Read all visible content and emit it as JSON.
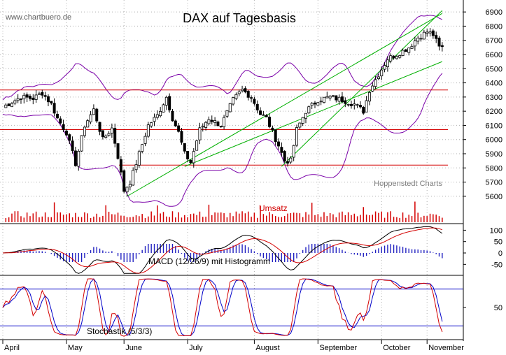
{
  "watermark": "www.chartbuero.de",
  "chart_data": [
    {
      "type": "candlestick",
      "title": "DAX auf Tagesbasis",
      "annotations": [
        "Hoppenstedt Charts"
      ],
      "y_ticks": [
        5600,
        5700,
        5800,
        5900,
        6000,
        6100,
        6200,
        6300,
        6400,
        6500,
        6600,
        6700,
        6800,
        6900
      ],
      "ylim": [
        5555,
        6945
      ],
      "x_labels": [
        "April",
        "May",
        "June",
        "July",
        "August",
        "September",
        "October",
        "November"
      ],
      "grid": true,
      "close_anchors": [
        [
          0,
          6230
        ],
        [
          6,
          6300
        ],
        [
          10,
          6290
        ],
        [
          13,
          6330
        ],
        [
          16,
          6250
        ],
        [
          18,
          6150
        ],
        [
          21,
          6050
        ],
        [
          24,
          5830
        ],
        [
          27,
          6100
        ],
        [
          30,
          6210
        ],
        [
          33,
          6000
        ],
        [
          36,
          6080
        ],
        [
          38,
          5880
        ],
        [
          40,
          5640
        ],
        [
          42,
          5700
        ],
        [
          45,
          5900
        ],
        [
          48,
          6100
        ],
        [
          51,
          6170
        ],
        [
          54,
          6300
        ],
        [
          56,
          6150
        ],
        [
          58,
          6050
        ],
        [
          60,
          5900
        ],
        [
          62,
          5840
        ],
        [
          65,
          6070
        ],
        [
          68,
          6150
        ],
        [
          72,
          6100
        ],
        [
          76,
          6280
        ],
        [
          79,
          6350
        ],
        [
          82,
          6300
        ],
        [
          85,
          6180
        ],
        [
          87,
          6150
        ],
        [
          89,
          6050
        ],
        [
          91,
          5960
        ],
        [
          93,
          5850
        ],
        [
          95,
          5850
        ],
        [
          97,
          6070
        ],
        [
          100,
          6200
        ],
        [
          104,
          6280
        ],
        [
          108,
          6300
        ],
        [
          112,
          6280
        ],
        [
          116,
          6250
        ],
        [
          119,
          6200
        ],
        [
          121,
          6350
        ],
        [
          124,
          6460
        ],
        [
          127,
          6570
        ],
        [
          130,
          6600
        ],
        [
          134,
          6650
        ],
        [
          137,
          6720
        ],
        [
          140,
          6760
        ],
        [
          142,
          6740
        ],
        [
          144,
          6650
        ]
      ],
      "horizontal_lines": [
        6350,
        6070,
        5820
      ],
      "trend_lines": [
        [
          [
            41,
            5600
          ],
          [
            145,
            6890
          ]
        ],
        [
          [
            60,
            5810
          ],
          [
            145,
            6550
          ]
        ],
        [
          [
            92,
            5810
          ],
          [
            145,
            6910
          ]
        ]
      ],
      "bollinger": true
    },
    {
      "type": "bar",
      "title": "Umsatz",
      "series_names": []
    },
    {
      "type": "line",
      "title": "MACD (12/26/9) mit Histogramm",
      "y_ticks": [
        100,
        50,
        0,
        -50
      ],
      "ylim": [
        -92,
        135
      ]
    },
    {
      "type": "line",
      "title": "Stochastik (5/3/3)",
      "y_ticks": [
        50
      ],
      "reference_lines": [
        80,
        20
      ],
      "ylim": [
        0,
        100
      ]
    }
  ],
  "colors": {
    "candle": "#000000",
    "bollinger": "#7a00a8",
    "support": "#d40000",
    "trend": "#00b000",
    "volume": "#d40000",
    "macd": "#000000",
    "signal": "#d40000",
    "histogram": "#2020c0",
    "stoch_k": "#d40000",
    "stoch_d": "#0000c8",
    "stoch_ref": "#0000c8",
    "grid": "#b0b0b0"
  }
}
